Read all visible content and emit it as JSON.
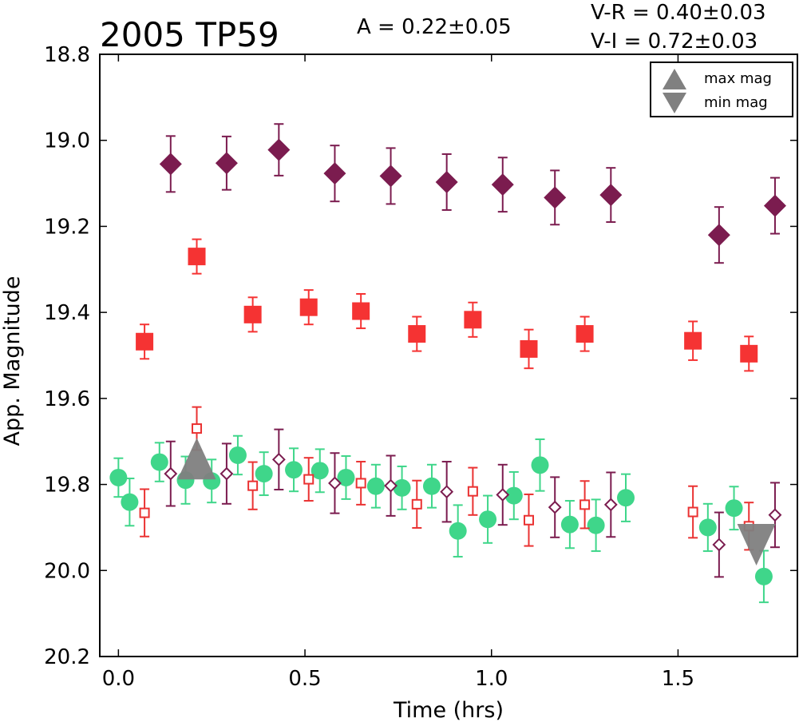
{
  "chart_data": {
    "type": "scatter",
    "title": "2005 TP59",
    "annotations": {
      "amplitude": "A  = 0.22±0.05",
      "v_r": "V-R = 0.40±0.03",
      "v_i": "V-I  = 0.72±0.03"
    },
    "xlabel": "Time (hrs)",
    "ylabel": "App. Magnitude",
    "xlim": [
      -0.05,
      1.82
    ],
    "ylim": [
      20.2,
      18.8
    ],
    "y_inverted": true,
    "grid": false,
    "x_ticks": [
      "0.0",
      "0.5",
      "1.0",
      "1.5"
    ],
    "x_tick_values": [
      0.0,
      0.5,
      1.0,
      1.5
    ],
    "y_ticks": [
      "18.8",
      "19.0",
      "19.2",
      "19.4",
      "19.6",
      "19.8",
      "20.0",
      "20.2"
    ],
    "y_tick_values": [
      18.8,
      19.0,
      19.2,
      19.4,
      19.6,
      19.8,
      20.0,
      20.2
    ],
    "legend": {
      "placement": "top-right",
      "entries": [
        {
          "label": "max mag",
          "marker": "triangle-up",
          "color": "#808080"
        },
        {
          "label": "min mag",
          "marker": "triangle-down",
          "color": "#808080"
        }
      ]
    },
    "series": [
      {
        "marker": "diamond-filled",
        "color": "#7b1c4f",
        "x": [
          0.14,
          0.29,
          0.43,
          0.58,
          0.73,
          0.88,
          1.03,
          1.17,
          1.32,
          1.61,
          1.76
        ],
        "y": [
          19.055,
          19.053,
          19.022,
          19.077,
          19.083,
          19.097,
          19.103,
          19.133,
          19.127,
          19.22,
          19.152
        ],
        "err": [
          0.065,
          0.062,
          0.06,
          0.065,
          0.065,
          0.065,
          0.063,
          0.063,
          0.063,
          0.065,
          0.065
        ]
      },
      {
        "marker": "square-filled",
        "color": "#f53333",
        "x": [
          0.07,
          0.21,
          0.36,
          0.51,
          0.65,
          0.8,
          0.95,
          1.1,
          1.25,
          1.54,
          1.69
        ],
        "y": [
          19.468,
          19.27,
          19.405,
          19.388,
          19.397,
          19.45,
          19.417,
          19.485,
          19.45,
          19.466,
          19.496
        ],
        "err": [
          0.04,
          0.04,
          0.04,
          0.04,
          0.04,
          0.04,
          0.04,
          0.045,
          0.04,
          0.045,
          0.04
        ]
      },
      {
        "marker": "circle-filled",
        "color": "#3fd68a",
        "x": [
          0.0,
          0.03,
          0.11,
          0.18,
          0.25,
          0.32,
          0.39,
          0.47,
          0.54,
          0.61,
          0.69,
          0.76,
          0.84,
          0.91,
          0.99,
          1.06,
          1.13,
          1.21,
          1.28,
          1.36,
          1.58,
          1.65,
          1.73
        ],
        "y": [
          19.784,
          19.841,
          19.748,
          19.79,
          19.792,
          19.732,
          19.775,
          19.766,
          19.768,
          19.784,
          19.804,
          19.808,
          19.804,
          19.908,
          19.881,
          19.826,
          19.755,
          19.893,
          19.895,
          19.831,
          19.9,
          19.855,
          20.014
        ],
        "err": [
          0.045,
          0.055,
          0.045,
          0.055,
          0.05,
          0.045,
          0.05,
          0.05,
          0.05,
          0.05,
          0.05,
          0.05,
          0.05,
          0.06,
          0.055,
          0.055,
          0.06,
          0.055,
          0.06,
          0.055,
          0.055,
          0.05,
          0.06
        ]
      },
      {
        "marker": "square-open",
        "color": "#ea3232",
        "x": [
          0.07,
          0.21,
          0.36,
          0.51,
          0.65,
          0.8,
          0.95,
          1.1,
          1.25,
          1.54,
          1.69
        ],
        "y": [
          19.866,
          19.67,
          19.803,
          19.788,
          19.797,
          19.846,
          19.816,
          19.883,
          19.847,
          19.864,
          19.897
        ],
        "err": [
          0.055,
          0.05,
          0.055,
          0.05,
          0.05,
          0.055,
          0.055,
          0.06,
          0.055,
          0.06,
          0.055
        ]
      },
      {
        "marker": "diamond-open",
        "color": "#7b1c4f",
        "x": [
          0.14,
          0.29,
          0.43,
          0.58,
          0.73,
          0.88,
          1.03,
          1.17,
          1.32,
          1.61,
          1.76
        ],
        "y": [
          19.775,
          19.775,
          19.742,
          19.797,
          19.803,
          19.817,
          19.824,
          19.853,
          19.847,
          19.94,
          19.871
        ],
        "err": [
          0.075,
          0.07,
          0.07,
          0.07,
          0.07,
          0.07,
          0.07,
          0.07,
          0.075,
          0.075,
          0.075
        ]
      }
    ],
    "extrema": [
      {
        "type": "max",
        "marker": "triangle-up",
        "x": 0.21,
        "y": 19.74,
        "color": "#808080"
      },
      {
        "type": "min",
        "marker": "triangle-down",
        "x": 1.71,
        "y": 19.94,
        "color": "#808080"
      }
    ]
  }
}
